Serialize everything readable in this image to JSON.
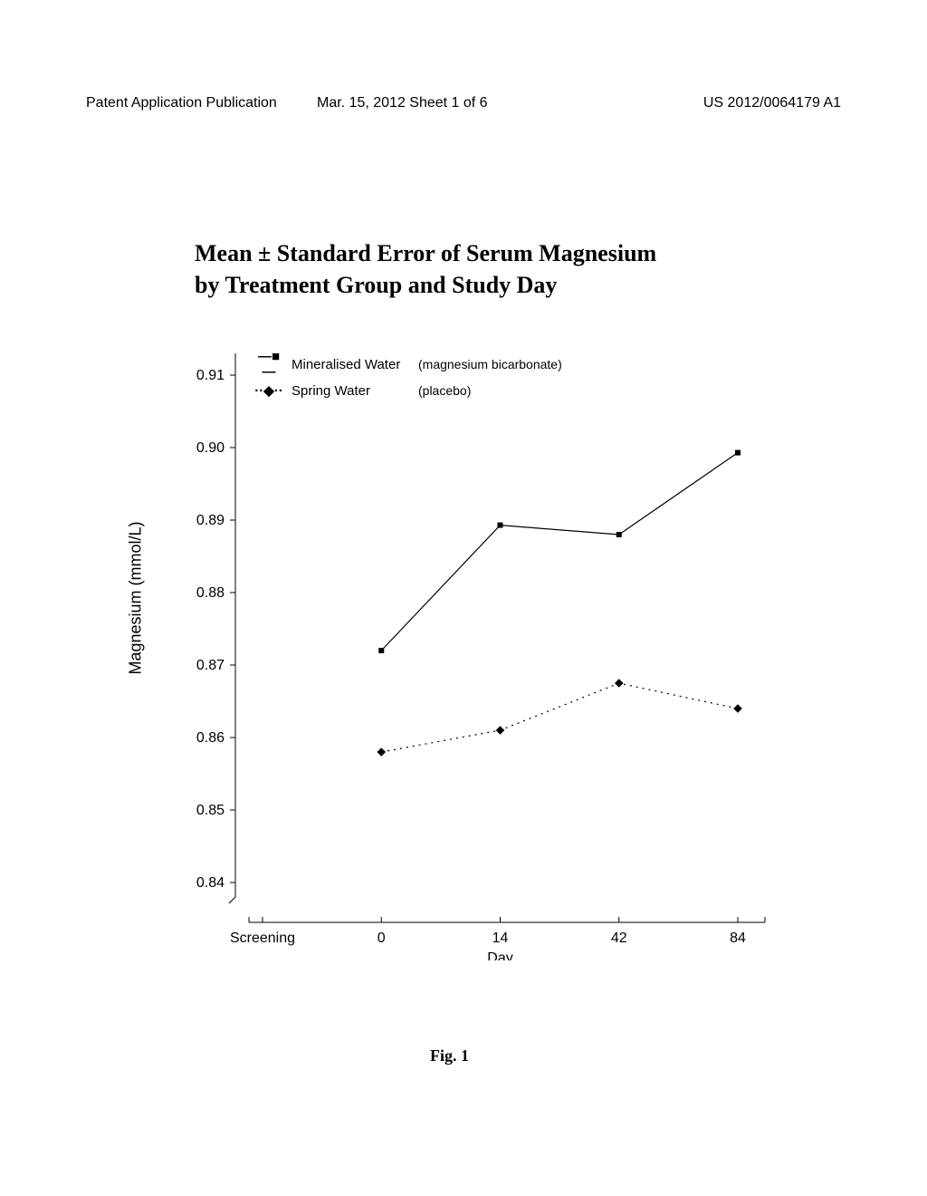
{
  "header": {
    "left": "Patent Application Publication",
    "center": "Mar. 15, 2012  Sheet 1 of 6",
    "right": "US 2012/0064179 A1"
  },
  "chart": {
    "title_line1": "Mean ± Standard Error of Serum Magnesium",
    "title_line2": "by Treatment Group and Study Day",
    "type": "line",
    "y_axis": {
      "label": "Magnesium (mmol/L)",
      "ticks": [
        0.84,
        0.85,
        0.86,
        0.87,
        0.88,
        0.89,
        0.9,
        0.91
      ],
      "min": 0.838,
      "max": 0.913,
      "fontsize": 16
    },
    "x_axis": {
      "label": "Day",
      "categories": [
        "Screening",
        "0",
        "14",
        "42",
        "84"
      ],
      "fontsize": 16
    },
    "legend": {
      "position": "top-left-inside",
      "items": [
        {
          "marker": "square",
          "line_style": "solid",
          "label": "Mineralised Water",
          "desc": "(magnesium bicarbonate)"
        },
        {
          "marker": "diamond",
          "line_style": "dotted",
          "label": "Spring Water",
          "desc": "(placebo)"
        }
      ],
      "fontsize": 15
    },
    "series": [
      {
        "name": "Mineralised Water",
        "marker": "square",
        "marker_size": 6,
        "line_style": "solid",
        "line_width": 1.2,
        "color": "#000000",
        "data": [
          {
            "x": "0",
            "y": 0.872
          },
          {
            "x": "14",
            "y": 0.8893
          },
          {
            "x": "42",
            "y": 0.888
          },
          {
            "x": "84",
            "y": 0.8993
          }
        ]
      },
      {
        "name": "Spring Water",
        "marker": "diamond",
        "marker_size": 6,
        "line_style": "dotted",
        "line_width": 1.2,
        "color": "#000000",
        "data": [
          {
            "x": "0",
            "y": 0.858
          },
          {
            "x": "14",
            "y": 0.861
          },
          {
            "x": "42",
            "y": 0.8675
          },
          {
            "x": "84",
            "y": 0.864
          }
        ]
      }
    ],
    "background_color": "#ffffff",
    "figure_caption": "Fig. 1"
  }
}
